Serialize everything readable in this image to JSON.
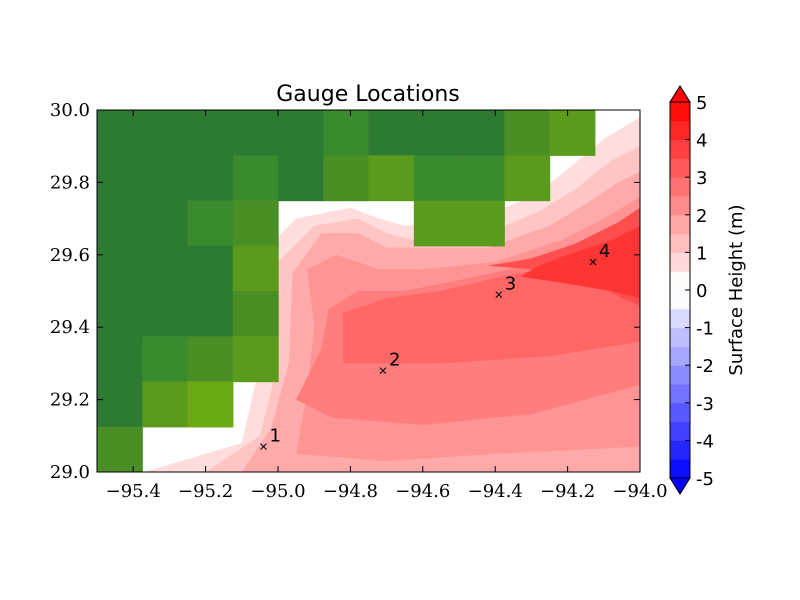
{
  "chart_data": {
    "type": "heatmap",
    "title": "Gauge Locations",
    "xlabel": "",
    "ylabel": "",
    "xlim": [
      -95.5,
      -94.0
    ],
    "ylim": [
      29.0,
      30.0
    ],
    "x_ticks": [
      {
        "value": -95.4,
        "label": "−95.4"
      },
      {
        "value": -95.2,
        "label": "−95.2"
      },
      {
        "value": -95.0,
        "label": "−95.0"
      },
      {
        "value": -94.8,
        "label": "−94.8"
      },
      {
        "value": -94.6,
        "label": "−94.6"
      },
      {
        "value": -94.4,
        "label": "−94.4"
      },
      {
        "value": -94.2,
        "label": "−94.2"
      },
      {
        "value": -94.0,
        "label": "−94.0"
      }
    ],
    "y_ticks": [
      {
        "value": 29.0,
        "label": "29.0"
      },
      {
        "value": 29.2,
        "label": "29.2"
      },
      {
        "value": 29.4,
        "label": "29.4"
      },
      {
        "value": 29.6,
        "label": "29.6"
      },
      {
        "value": 29.8,
        "label": "29.8"
      },
      {
        "value": 30.0,
        "label": "30.0"
      }
    ],
    "colorbar": {
      "label": "Surface Height (m)",
      "min": -5,
      "max": 5,
      "levels": 20,
      "tick_values": [
        -5,
        -4,
        -3,
        -2,
        -1,
        0,
        1,
        2,
        3,
        4,
        5
      ],
      "tick_labels": [
        "-5",
        "-4",
        "-3",
        "-2",
        "-1",
        "0",
        "1",
        "2",
        "3",
        "4",
        "5"
      ],
      "extend": "both",
      "cmap": "bwr"
    },
    "land": {
      "cell_lon": 0.125,
      "cell_lat": 0.125,
      "cells": [
        {
          "lon": -95.5,
          "lat": 29.875,
          "color": "#2d7a33"
        },
        {
          "lon": -95.375,
          "lat": 29.875,
          "color": "#2d7a33"
        },
        {
          "lon": -95.25,
          "lat": 29.875,
          "color": "#2d7a33"
        },
        {
          "lon": -95.125,
          "lat": 29.875,
          "color": "#2d7a33"
        },
        {
          "lon": -95.0,
          "lat": 29.875,
          "color": "#2d7a33"
        },
        {
          "lon": -94.875,
          "lat": 29.875,
          "color": "#3a8a2e"
        },
        {
          "lon": -94.75,
          "lat": 29.875,
          "color": "#2d7a33"
        },
        {
          "lon": -94.625,
          "lat": 29.875,
          "color": "#2d7a33"
        },
        {
          "lon": -94.5,
          "lat": 29.875,
          "color": "#2d7a33"
        },
        {
          "lon": -94.375,
          "lat": 29.875,
          "color": "#4a8f26"
        },
        {
          "lon": -94.25,
          "lat": 29.875,
          "color": "#5a9b1e"
        },
        {
          "lon": -95.5,
          "lat": 29.75,
          "color": "#2d7a33"
        },
        {
          "lon": -95.375,
          "lat": 29.75,
          "color": "#2d7a33"
        },
        {
          "lon": -95.25,
          "lat": 29.75,
          "color": "#2d7a33"
        },
        {
          "lon": -95.125,
          "lat": 29.75,
          "color": "#3a8a2e"
        },
        {
          "lon": -95.0,
          "lat": 29.75,
          "color": "#2d7a33"
        },
        {
          "lon": -94.875,
          "lat": 29.75,
          "color": "#4a8f26"
        },
        {
          "lon": -94.75,
          "lat": 29.75,
          "color": "#5a9b1e"
        },
        {
          "lon": -94.625,
          "lat": 29.75,
          "color": "#3a8a2e"
        },
        {
          "lon": -94.5,
          "lat": 29.75,
          "color": "#3a8a2e"
        },
        {
          "lon": -94.375,
          "lat": 29.75,
          "color": "#5a9b1e"
        },
        {
          "lon": -95.5,
          "lat": 29.625,
          "color": "#2d7a33"
        },
        {
          "lon": -95.375,
          "lat": 29.625,
          "color": "#2d7a33"
        },
        {
          "lon": -95.25,
          "lat": 29.625,
          "color": "#3a8a2e"
        },
        {
          "lon": -95.125,
          "lat": 29.625,
          "color": "#4a8f26"
        },
        {
          "lon": -94.625,
          "lat": 29.625,
          "color": "#5a9b1e"
        },
        {
          "lon": -94.5,
          "lat": 29.625,
          "color": "#5a9b1e"
        },
        {
          "lon": -95.5,
          "lat": 29.5,
          "color": "#2d7a33"
        },
        {
          "lon": -95.375,
          "lat": 29.5,
          "color": "#2d7a33"
        },
        {
          "lon": -95.25,
          "lat": 29.5,
          "color": "#2d7a33"
        },
        {
          "lon": -95.125,
          "lat": 29.5,
          "color": "#5a9b1e"
        },
        {
          "lon": -95.5,
          "lat": 29.375,
          "color": "#2d7a33"
        },
        {
          "lon": -95.375,
          "lat": 29.375,
          "color": "#2d7a33"
        },
        {
          "lon": -95.25,
          "lat": 29.375,
          "color": "#2d7a33"
        },
        {
          "lon": -95.125,
          "lat": 29.375,
          "color": "#4a8f26"
        },
        {
          "lon": -95.5,
          "lat": 29.25,
          "color": "#2d7a33"
        },
        {
          "lon": -95.375,
          "lat": 29.25,
          "color": "#3a8a2e"
        },
        {
          "lon": -95.25,
          "lat": 29.25,
          "color": "#4a8f26"
        },
        {
          "lon": -95.125,
          "lat": 29.25,
          "color": "#5a9b1e"
        },
        {
          "lon": -95.5,
          "lat": 29.125,
          "color": "#2d7a33"
        },
        {
          "lon": -95.375,
          "lat": 29.125,
          "color": "#5a9b1e"
        },
        {
          "lon": -95.25,
          "lat": 29.125,
          "color": "#6aa814"
        },
        {
          "lon": -95.5,
          "lat": 29.0,
          "color": "#4a8f26"
        }
      ]
    },
    "surface_contours": [
      {
        "level": 0.5,
        "color": "#ffdddd",
        "polygon": [
          [
            -95.37,
            29.0
          ],
          [
            -95.1,
            29.08
          ],
          [
            -95.05,
            29.3
          ],
          [
            -95.05,
            29.6
          ],
          [
            -94.95,
            29.7
          ],
          [
            -94.8,
            29.73
          ],
          [
            -94.72,
            29.7
          ],
          [
            -94.65,
            29.68
          ],
          [
            -94.45,
            29.7
          ],
          [
            -94.3,
            29.76
          ],
          [
            -94.22,
            29.82
          ],
          [
            -94.1,
            29.92
          ],
          [
            -94.0,
            29.98
          ],
          [
            -94.0,
            29.0
          ]
        ]
      },
      {
        "level": 1.0,
        "color": "#ffc4c4",
        "polygon": [
          [
            -95.2,
            29.0
          ],
          [
            -95.05,
            29.1
          ],
          [
            -95.0,
            29.3
          ],
          [
            -95.0,
            29.58
          ],
          [
            -94.9,
            29.68
          ],
          [
            -94.78,
            29.7
          ],
          [
            -94.7,
            29.66
          ],
          [
            -94.62,
            29.64
          ],
          [
            -94.42,
            29.66
          ],
          [
            -94.28,
            29.72
          ],
          [
            -94.18,
            29.78
          ],
          [
            -94.08,
            29.86
          ],
          [
            -94.0,
            29.9
          ],
          [
            -94.0,
            29.0
          ]
        ]
      },
      {
        "level": 1.5,
        "color": "#ffaaaa",
        "polygon": [
          [
            -95.1,
            29.0
          ],
          [
            -95.02,
            29.12
          ],
          [
            -94.97,
            29.3
          ],
          [
            -94.96,
            29.55
          ],
          [
            -94.88,
            29.66
          ],
          [
            -94.78,
            29.66
          ],
          [
            -94.7,
            29.62
          ],
          [
            -94.6,
            29.62
          ],
          [
            -94.42,
            29.62
          ],
          [
            -94.25,
            29.68
          ],
          [
            -94.15,
            29.74
          ],
          [
            -94.06,
            29.8
          ],
          [
            -94.0,
            29.83
          ],
          [
            -94.0,
            29.0
          ]
        ]
      },
      {
        "level": 2.0,
        "color": "#ff9494",
        "polygon": [
          [
            -94.95,
            29.05
          ],
          [
            -94.92,
            29.22
          ],
          [
            -94.9,
            29.4
          ],
          [
            -94.92,
            29.56
          ],
          [
            -94.84,
            29.6
          ],
          [
            -94.72,
            29.56
          ],
          [
            -94.6,
            29.56
          ],
          [
            -94.4,
            29.58
          ],
          [
            -94.22,
            29.64
          ],
          [
            -94.1,
            29.7
          ],
          [
            -94.0,
            29.76
          ],
          [
            -94.0,
            29.07
          ],
          [
            -94.4,
            29.05
          ],
          [
            -94.7,
            29.03
          ]
        ]
      },
      {
        "level": 2.5,
        "color": "#ff7d7d",
        "polygon": [
          [
            -94.95,
            29.2
          ],
          [
            -94.88,
            29.34
          ],
          [
            -94.86,
            29.45
          ],
          [
            -94.78,
            29.5
          ],
          [
            -94.65,
            29.5
          ],
          [
            -94.45,
            29.54
          ],
          [
            -94.28,
            29.58
          ],
          [
            -94.12,
            29.64
          ],
          [
            -94.0,
            29.7
          ],
          [
            -94.0,
            29.24
          ],
          [
            -94.3,
            29.16
          ],
          [
            -94.6,
            29.13
          ],
          [
            -94.85,
            29.15
          ]
        ]
      },
      {
        "level": 3.0,
        "color": "#ff6666",
        "polygon": [
          [
            -94.82,
            29.3
          ],
          [
            -94.82,
            29.44
          ],
          [
            -94.7,
            29.48
          ],
          [
            -94.55,
            29.5
          ],
          [
            -94.38,
            29.54
          ],
          [
            -94.22,
            29.57
          ],
          [
            -94.1,
            29.62
          ],
          [
            -94.0,
            29.66
          ],
          [
            -94.0,
            29.36
          ],
          [
            -94.25,
            29.32
          ],
          [
            -94.55,
            29.3
          ]
        ]
      },
      {
        "level": 3.5,
        "color": "#ff4e4e",
        "polygon": [
          [
            -94.42,
            29.57
          ],
          [
            -94.3,
            29.56
          ],
          [
            -94.16,
            29.54
          ],
          [
            -94.05,
            29.48
          ],
          [
            -94.0,
            29.46
          ],
          [
            -94.0,
            29.73
          ],
          [
            -94.06,
            29.69
          ],
          [
            -94.18,
            29.63
          ],
          [
            -94.3,
            29.59
          ]
        ]
      },
      {
        "level": 4.0,
        "color": "#ff3535",
        "polygon": [
          [
            -94.33,
            29.54
          ],
          [
            -94.2,
            29.52
          ],
          [
            -94.08,
            29.5
          ],
          [
            -94.0,
            29.48
          ],
          [
            -94.0,
            29.68
          ],
          [
            -94.08,
            29.64
          ],
          [
            -94.2,
            29.6
          ],
          [
            -94.28,
            29.57
          ]
        ]
      }
    ],
    "gauges": [
      {
        "id": "1",
        "lon": -95.04,
        "lat": 29.07
      },
      {
        "id": "2",
        "lon": -94.71,
        "lat": 29.28
      },
      {
        "id": "3",
        "lon": -94.39,
        "lat": 29.49
      },
      {
        "id": "4",
        "lon": -94.13,
        "lat": 29.58
      }
    ]
  }
}
